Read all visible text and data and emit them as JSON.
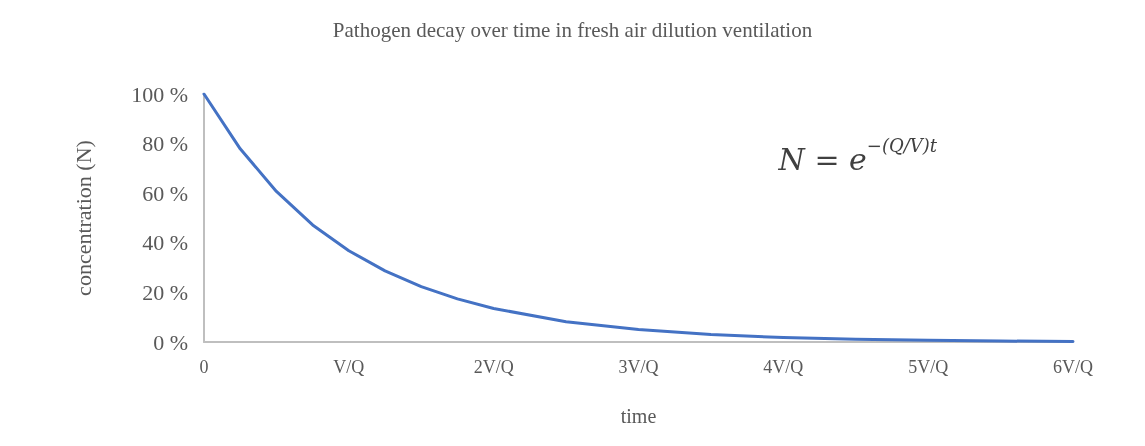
{
  "chart_data": {
    "type": "line",
    "title": "Pathogen decay over time in fresh air dilution ventilation",
    "xlabel": "time",
    "ylabel": "concentration (N)",
    "annotations": [
      "N = e$^{−(Q/V)t}$"
    ],
    "x": [
      0,
      0.25,
      0.5,
      0.75,
      1,
      1.25,
      1.5,
      1.75,
      2,
      2.5,
      3,
      3.5,
      4,
      4.5,
      5,
      5.5,
      6
    ],
    "series": [
      {
        "color": "#4472c4",
        "values": [
          100,
          77.9,
          60.7,
          47.2,
          36.8,
          28.7,
          22.3,
          17.4,
          13.5,
          8.2,
          5.0,
          3.0,
          1.8,
          1.1,
          0.7,
          0.4,
          0.2
        ]
      }
    ],
    "xlim": [
      0,
      6
    ],
    "xticks": [
      0,
      {
        "value": 1,
        "label": "V/Q"
      },
      {
        "value": 2,
        "label": "2V/Q"
      },
      {
        "value": 3,
        "label": "3V/Q"
      },
      {
        "value": 4,
        "label": "4V/Q"
      },
      {
        "value": 5,
        "label": "5V/Q"
      },
      {
        "value": 6,
        "label": "6V/Q"
      }
    ],
    "ylim": [
      0,
      100
    ],
    "yticks": [
      {
        "value": 0,
        "label": "0 %"
      },
      {
        "value": 20,
        "label": "20 %"
      },
      {
        "value": 40,
        "label": "40 %"
      },
      {
        "value": 60,
        "label": "60 %"
      },
      {
        "value": 80,
        "label": "80 %"
      },
      {
        "value": 100,
        "label": "100 %"
      }
    ],
    "grid": false,
    "marker": "none",
    "line_style": "solid"
  }
}
